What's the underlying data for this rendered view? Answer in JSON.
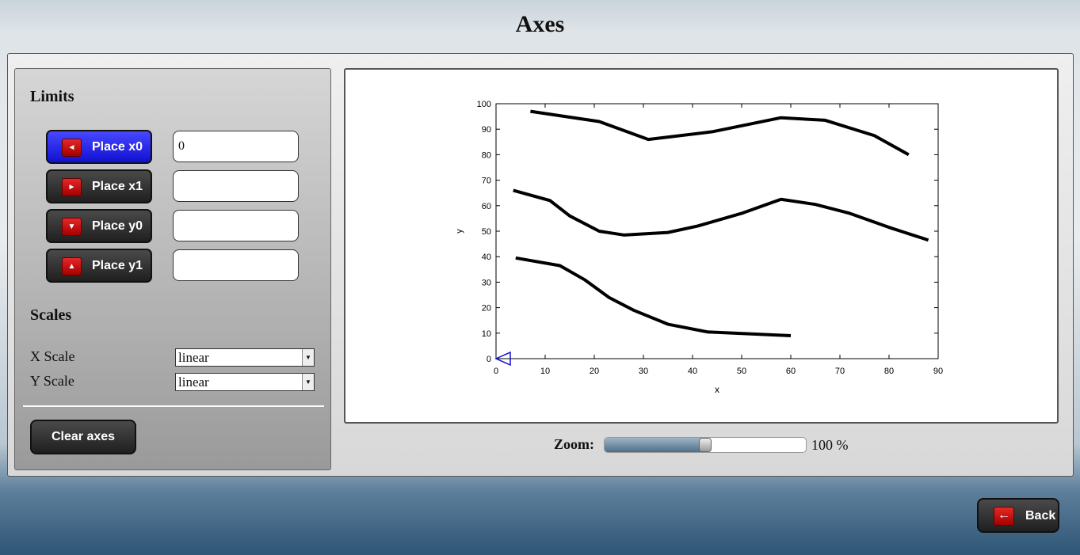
{
  "page": {
    "title": "Axes"
  },
  "limits": {
    "heading": "Limits",
    "buttons": [
      {
        "label": "Place x0",
        "arrow": "◄",
        "value": "0",
        "active": true
      },
      {
        "label": "Place x1",
        "arrow": "►",
        "value": "",
        "active": false
      },
      {
        "label": "Place y0",
        "arrow": "▼",
        "value": "",
        "active": false
      },
      {
        "label": "Place y1",
        "arrow": "▲",
        "value": "",
        "active": false
      }
    ]
  },
  "scales": {
    "heading": "Scales",
    "x_label": "X Scale",
    "x_value": "linear",
    "y_label": "Y Scale",
    "y_value": "linear"
  },
  "clear_label": "Clear axes",
  "zoom": {
    "label": "Zoom:",
    "value_text": "100 %",
    "fraction": 0.5
  },
  "back": {
    "label": "Back",
    "arrow": "←"
  },
  "colors": {
    "active_button": "#2a2ae8",
    "arrow_box": "#d11a1a",
    "marker": "#1010d0"
  },
  "chart_data": {
    "type": "line",
    "xlabel": "x",
    "ylabel": "y",
    "xlim": [
      0,
      90
    ],
    "ylim": [
      0,
      100
    ],
    "xticks": [
      0,
      10,
      20,
      30,
      40,
      50,
      60,
      70,
      80,
      90
    ],
    "yticks": [
      0,
      10,
      20,
      30,
      40,
      50,
      60,
      70,
      80,
      90,
      100
    ],
    "series": [
      {
        "x": [
          7,
          21,
          31,
          44,
          58,
          67,
          77,
          84
        ],
        "y": [
          97,
          93,
          86,
          89,
          94.5,
          93.5,
          87.5,
          80
        ]
      },
      {
        "x": [
          3.5,
          11,
          15,
          21,
          26,
          35,
          41,
          50,
          58,
          65,
          72,
          80,
          88
        ],
        "y": [
          66,
          62,
          56,
          50,
          48.5,
          49.5,
          52,
          57,
          62.5,
          60.5,
          57,
          51.5,
          46.5
        ]
      },
      {
        "x": [
          4,
          13,
          18,
          23,
          28,
          35,
          43,
          60
        ],
        "y": [
          39.5,
          36.5,
          31,
          24,
          19,
          13.5,
          10.5,
          9
        ]
      }
    ],
    "marker": {
      "x": 0,
      "y": 0
    }
  }
}
